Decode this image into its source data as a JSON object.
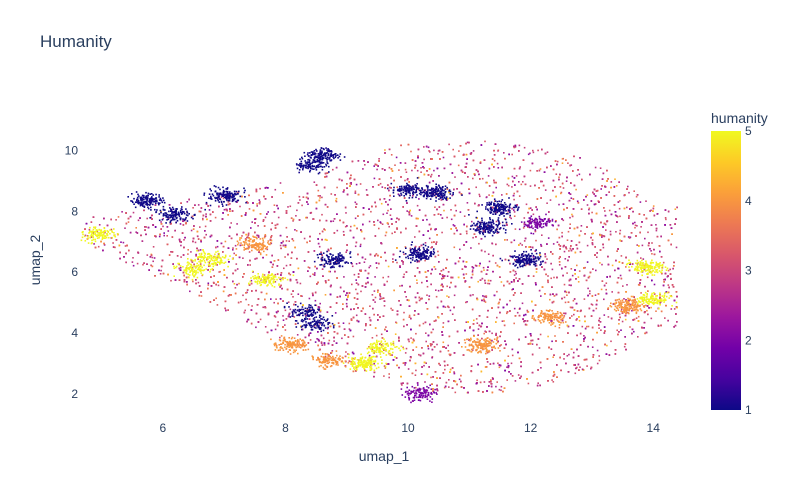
{
  "chart_data": {
    "type": "scatter",
    "title": "Humanity",
    "xlabel": "umap_1",
    "ylabel": "umap_2",
    "xlim": [
      4.6,
      14.6
    ],
    "ylim": [
      1.4,
      11.0
    ],
    "x_ticks": [
      6,
      8,
      10,
      12,
      14
    ],
    "y_ticks": [
      2,
      4,
      6,
      8,
      10
    ],
    "colorbar": {
      "title": "humanity",
      "min": 1,
      "max": 5,
      "ticks": [
        1,
        2,
        3,
        4,
        5
      ],
      "colorscale": [
        "#0d0887",
        "#46039f",
        "#7201a8",
        "#9c179e",
        "#bd3786",
        "#d8576b",
        "#ed7953",
        "#fb9f3a",
        "#fdca26",
        "#f0f921"
      ]
    },
    "grid": false,
    "background": "#ffffff",
    "points_note_clusters": [
      {
        "x": 4.95,
        "y": 7.25,
        "value": 5
      },
      {
        "x": 5.75,
        "y": 8.35,
        "value": 1
      },
      {
        "x": 6.2,
        "y": 7.9,
        "value": 1
      },
      {
        "x": 6.8,
        "y": 6.45,
        "value": 5
      },
      {
        "x": 7.7,
        "y": 5.75,
        "value": 5
      },
      {
        "x": 7.5,
        "y": 6.9,
        "value": 4
      },
      {
        "x": 6.5,
        "y": 6.1,
        "value": 5
      },
      {
        "x": 7.0,
        "y": 8.5,
        "value": 1
      },
      {
        "x": 8.3,
        "y": 4.7,
        "value": 1
      },
      {
        "x": 8.5,
        "y": 4.3,
        "value": 1
      },
      {
        "x": 8.6,
        "y": 9.85,
        "value": 1
      },
      {
        "x": 8.4,
        "y": 9.5,
        "value": 1
      },
      {
        "x": 8.8,
        "y": 6.4,
        "value": 1
      },
      {
        "x": 8.1,
        "y": 3.6,
        "value": 4
      },
      {
        "x": 8.7,
        "y": 3.1,
        "value": 4
      },
      {
        "x": 9.3,
        "y": 3.0,
        "value": 5
      },
      {
        "x": 9.55,
        "y": 3.5,
        "value": 5
      },
      {
        "x": 10.0,
        "y": 8.7,
        "value": 1
      },
      {
        "x": 10.45,
        "y": 8.6,
        "value": 1
      },
      {
        "x": 10.2,
        "y": 6.6,
        "value": 1
      },
      {
        "x": 10.2,
        "y": 2.0,
        "value": 2
      },
      {
        "x": 11.5,
        "y": 8.1,
        "value": 1
      },
      {
        "x": 11.3,
        "y": 7.5,
        "value": 1
      },
      {
        "x": 11.9,
        "y": 6.4,
        "value": 1
      },
      {
        "x": 12.1,
        "y": 7.6,
        "value": 2
      },
      {
        "x": 13.9,
        "y": 6.15,
        "value": 5
      },
      {
        "x": 13.6,
        "y": 4.9,
        "value": 4
      },
      {
        "x": 14.0,
        "y": 5.1,
        "value": 5
      },
      {
        "x": 11.2,
        "y": 3.6,
        "value": 4
      },
      {
        "x": 12.3,
        "y": 4.5,
        "value": 4
      }
    ]
  }
}
